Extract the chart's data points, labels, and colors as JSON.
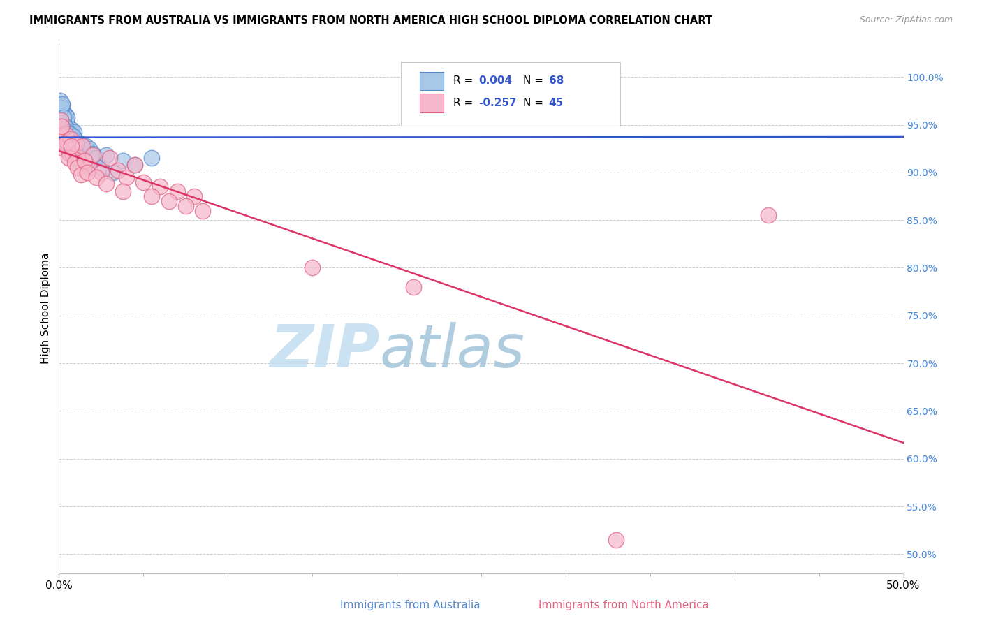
{
  "title": "IMMIGRANTS FROM AUSTRALIA VS IMMIGRANTS FROM NORTH AMERICA HIGH SCHOOL DIPLOMA CORRELATION CHART",
  "source": "Source: ZipAtlas.com",
  "ylabel": "High School Diploma",
  "yticks": [
    50.0,
    55.0,
    60.0,
    65.0,
    70.0,
    75.0,
    80.0,
    85.0,
    90.0,
    95.0,
    100.0
  ],
  "ytick_labels": [
    "50.0%",
    "55.0%",
    "60.0%",
    "65.0%",
    "70.0%",
    "75.0%",
    "80.0%",
    "85.0%",
    "90.0%",
    "95.0%",
    "100.0%"
  ],
  "xlim": [
    0.0,
    50.0
  ],
  "ylim": [
    48.0,
    103.5
  ],
  "australia_color": "#a8c8e8",
  "australia_edge": "#5588cc",
  "northam_color": "#f5b8cc",
  "northam_edge": "#e06080",
  "trend_blue": "#3355cc",
  "trend_pink": "#dd3366",
  "R_australia": 0.004,
  "N_australia": 68,
  "R_northam": -0.257,
  "N_northam": 45,
  "legend_label_australia": "Immigrants from Australia",
  "legend_label_northam": "Immigrants from North America",
  "watermark_zip": "ZIP",
  "watermark_atlas": "atlas",
  "aus_x": [
    0.05,
    0.08,
    0.1,
    0.12,
    0.15,
    0.18,
    0.2,
    0.22,
    0.25,
    0.28,
    0.3,
    0.32,
    0.35,
    0.38,
    0.4,
    0.42,
    0.45,
    0.48,
    0.5,
    0.55,
    0.6,
    0.65,
    0.7,
    0.75,
    0.8,
    0.85,
    0.9,
    0.95,
    1.0,
    1.1,
    1.2,
    1.3,
    1.4,
    1.5,
    1.6,
    1.7,
    1.8,
    1.9,
    2.0,
    2.2,
    2.5,
    2.8,
    3.2,
    3.8,
    4.5,
    5.5,
    0.06,
    0.09,
    0.13,
    0.16,
    0.19,
    0.23,
    0.27,
    0.33,
    0.37,
    0.43,
    0.47,
    0.53,
    0.57,
    0.63,
    0.67,
    0.73,
    0.77,
    0.83,
    0.87,
    0.93,
    0.97,
    1.05
  ],
  "aus_y": [
    94.5,
    96.0,
    97.2,
    95.8,
    96.5,
    94.2,
    97.0,
    95.5,
    94.8,
    96.3,
    95.0,
    93.8,
    94.5,
    96.0,
    93.2,
    95.5,
    94.0,
    93.5,
    95.8,
    94.2,
    93.0,
    92.5,
    93.8,
    94.5,
    93.0,
    92.8,
    94.2,
    93.5,
    93.0,
    92.5,
    91.8,
    93.0,
    92.0,
    91.5,
    92.8,
    91.0,
    92.5,
    91.2,
    92.0,
    91.5,
    90.5,
    91.8,
    90.0,
    91.2,
    90.8,
    91.5,
    97.5,
    95.2,
    96.8,
    95.0,
    97.2,
    94.5,
    95.8,
    93.5,
    94.8,
    93.0,
    94.2,
    93.8,
    92.5,
    93.2,
    94.0,
    92.8,
    93.5,
    92.0,
    93.8,
    91.5,
    92.2,
    91.8
  ],
  "na_x": [
    0.05,
    0.1,
    0.2,
    0.3,
    0.4,
    0.5,
    0.6,
    0.7,
    0.8,
    0.9,
    1.0,
    1.2,
    1.4,
    1.6,
    1.8,
    2.0,
    2.5,
    3.0,
    3.5,
    4.0,
    4.5,
    5.0,
    6.0,
    7.0,
    8.0,
    0.15,
    0.35,
    0.55,
    0.75,
    0.95,
    1.1,
    1.3,
    1.5,
    1.7,
    2.2,
    2.8,
    3.8,
    5.5,
    6.5,
    7.5,
    8.5,
    15.0,
    21.0,
    33.0,
    42.0
  ],
  "na_y": [
    94.0,
    95.5,
    93.8,
    92.5,
    94.0,
    93.2,
    92.0,
    93.5,
    91.8,
    92.5,
    93.0,
    91.5,
    92.8,
    91.0,
    90.5,
    91.8,
    90.0,
    91.5,
    90.2,
    89.5,
    90.8,
    89.0,
    88.5,
    88.0,
    87.5,
    94.8,
    93.0,
    91.5,
    92.8,
    91.0,
    90.5,
    89.8,
    91.2,
    90.0,
    89.5,
    88.8,
    88.0,
    87.5,
    87.0,
    86.5,
    86.0,
    80.0,
    78.0,
    51.5,
    85.5
  ]
}
